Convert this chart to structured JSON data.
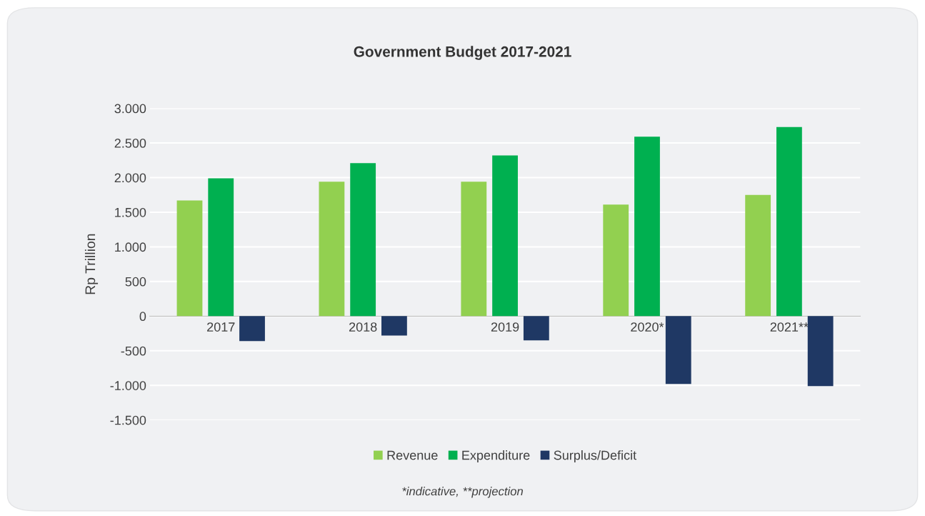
{
  "chart_data": {
    "type": "bar",
    "title": "Government Budget 2017-2021",
    "ylabel": "Rp Trillion",
    "categories": [
      "2017",
      "2018",
      "2019",
      "2020*",
      "2021**"
    ],
    "series": [
      {
        "name": "Revenue",
        "color": "#92d050",
        "values": [
          1670,
          1940,
          1940,
          1610,
          1750
        ]
      },
      {
        "name": "Expenditure",
        "color": "#00b050",
        "values": [
          1990,
          2210,
          2320,
          2590,
          2730
        ]
      },
      {
        "name": "Surplus/Deficit",
        "color": "#1f3864",
        "values": [
          -360,
          -280,
          -350,
          -980,
          -1010
        ]
      }
    ],
    "ylim": [
      -1500,
      3000
    ],
    "yticks": [
      {
        "value": -1500,
        "label": "-1.500"
      },
      {
        "value": -1000,
        "label": "-1.000"
      },
      {
        "value": -500,
        "label": "-500"
      },
      {
        "value": 0,
        "label": "0"
      },
      {
        "value": 500,
        "label": "500"
      },
      {
        "value": 1000,
        "label": "1.000"
      },
      {
        "value": 1500,
        "label": "1.500"
      },
      {
        "value": 2000,
        "label": "2.000"
      },
      {
        "value": 2500,
        "label": "2.500"
      },
      {
        "value": 3000,
        "label": "3.000"
      }
    ],
    "grid": "y",
    "legend": "bottom",
    "annotations": [
      "*indicative, **projection"
    ]
  }
}
